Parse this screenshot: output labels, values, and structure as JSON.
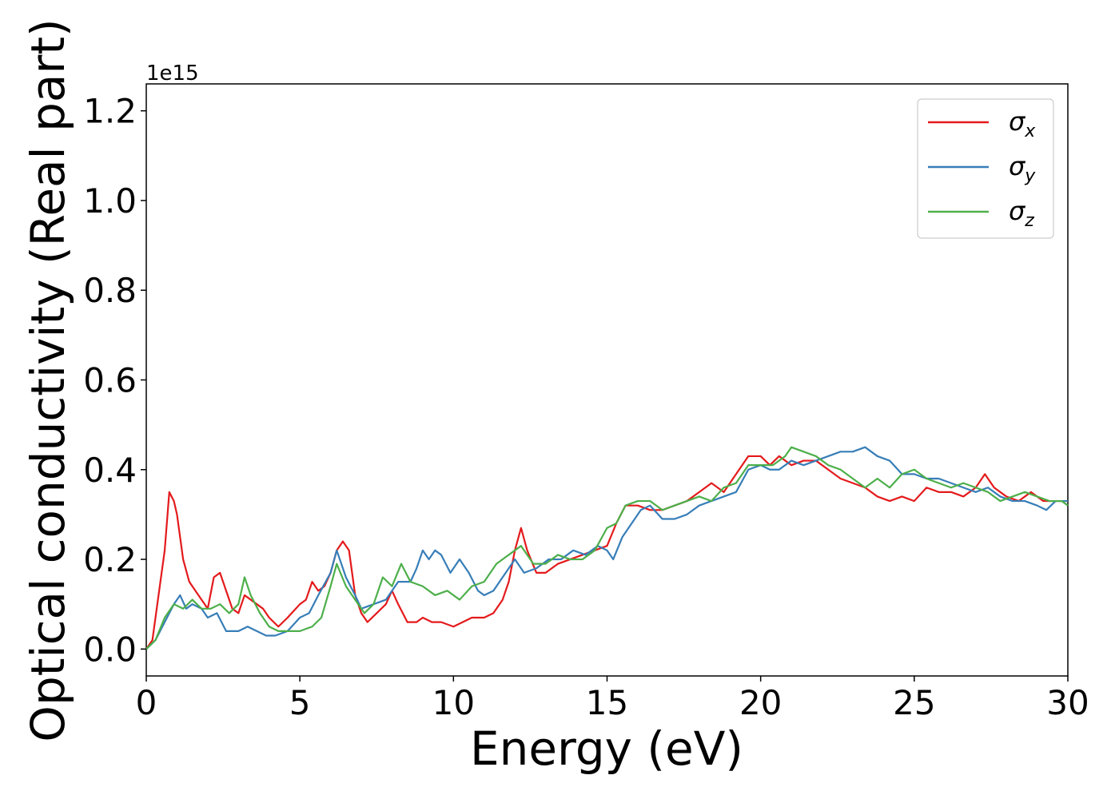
{
  "chart_data": {
    "type": "line",
    "xlabel": "Energy (eV)",
    "ylabel": "Optical conductivity (Real part)",
    "y_offset_text": "1e15",
    "xlim": [
      0,
      30
    ],
    "ylim": [
      -0.06,
      1.26
    ],
    "x_ticks": [
      0,
      5,
      10,
      15,
      20,
      25,
      30
    ],
    "x_tick_labels": [
      "0",
      "5",
      "10",
      "15",
      "20",
      "25",
      "30"
    ],
    "y_ticks": [
      0.0,
      0.2,
      0.4,
      0.6,
      0.8,
      1.0,
      1.2
    ],
    "y_tick_labels": [
      "0.0",
      "0.2",
      "0.4",
      "0.6",
      "0.8",
      "1.0",
      "1.2"
    ],
    "grid": false,
    "legend_position": "top-right",
    "series": [
      {
        "name": "σx",
        "legend_base": "σ",
        "legend_sub": "x",
        "color": "#e41a1c",
        "points": [
          [
            0,
            0
          ],
          [
            0.2,
            0.02
          ],
          [
            0.4,
            0.12
          ],
          [
            0.6,
            0.22
          ],
          [
            0.75,
            0.35
          ],
          [
            0.9,
            0.33
          ],
          [
            1.0,
            0.3
          ],
          [
            1.2,
            0.2
          ],
          [
            1.4,
            0.15
          ],
          [
            1.6,
            0.13
          ],
          [
            1.8,
            0.11
          ],
          [
            2.0,
            0.09
          ],
          [
            2.2,
            0.16
          ],
          [
            2.4,
            0.17
          ],
          [
            2.6,
            0.13
          ],
          [
            2.8,
            0.09
          ],
          [
            3.0,
            0.08
          ],
          [
            3.2,
            0.12
          ],
          [
            3.4,
            0.11
          ],
          [
            3.6,
            0.1
          ],
          [
            3.8,
            0.09
          ],
          [
            4.0,
            0.07
          ],
          [
            4.3,
            0.05
          ],
          [
            4.6,
            0.07
          ],
          [
            5.0,
            0.1
          ],
          [
            5.2,
            0.11
          ],
          [
            5.4,
            0.15
          ],
          [
            5.6,
            0.13
          ],
          [
            5.8,
            0.14
          ],
          [
            6.0,
            0.17
          ],
          [
            6.2,
            0.22
          ],
          [
            6.4,
            0.24
          ],
          [
            6.6,
            0.22
          ],
          [
            6.8,
            0.12
          ],
          [
            7.0,
            0.08
          ],
          [
            7.2,
            0.06
          ],
          [
            7.5,
            0.08
          ],
          [
            7.8,
            0.1
          ],
          [
            8.0,
            0.13
          ],
          [
            8.2,
            0.1
          ],
          [
            8.5,
            0.06
          ],
          [
            8.8,
            0.06
          ],
          [
            9.0,
            0.07
          ],
          [
            9.3,
            0.06
          ],
          [
            9.6,
            0.06
          ],
          [
            10.0,
            0.05
          ],
          [
            10.3,
            0.06
          ],
          [
            10.6,
            0.07
          ],
          [
            11.0,
            0.07
          ],
          [
            11.3,
            0.08
          ],
          [
            11.6,
            0.11
          ],
          [
            11.8,
            0.15
          ],
          [
            12.0,
            0.22
          ],
          [
            12.2,
            0.27
          ],
          [
            12.4,
            0.22
          ],
          [
            12.7,
            0.17
          ],
          [
            13.0,
            0.17
          ],
          [
            13.4,
            0.19
          ],
          [
            13.8,
            0.2
          ],
          [
            14.2,
            0.21
          ],
          [
            14.6,
            0.22
          ],
          [
            15.0,
            0.23
          ],
          [
            15.3,
            0.28
          ],
          [
            15.6,
            0.32
          ],
          [
            16.0,
            0.32
          ],
          [
            16.4,
            0.31
          ],
          [
            16.8,
            0.31
          ],
          [
            17.2,
            0.32
          ],
          [
            17.6,
            0.33
          ],
          [
            18.0,
            0.35
          ],
          [
            18.4,
            0.37
          ],
          [
            18.8,
            0.35
          ],
          [
            19.2,
            0.39
          ],
          [
            19.6,
            0.43
          ],
          [
            20.0,
            0.43
          ],
          [
            20.3,
            0.41
          ],
          [
            20.6,
            0.43
          ],
          [
            21.0,
            0.41
          ],
          [
            21.4,
            0.42
          ],
          [
            21.8,
            0.42
          ],
          [
            22.2,
            0.4
          ],
          [
            22.6,
            0.38
          ],
          [
            23.0,
            0.37
          ],
          [
            23.4,
            0.36
          ],
          [
            23.8,
            0.34
          ],
          [
            24.2,
            0.33
          ],
          [
            24.6,
            0.34
          ],
          [
            25.0,
            0.33
          ],
          [
            25.4,
            0.36
          ],
          [
            25.8,
            0.35
          ],
          [
            26.2,
            0.35
          ],
          [
            26.6,
            0.34
          ],
          [
            27.0,
            0.36
          ],
          [
            27.3,
            0.39
          ],
          [
            27.6,
            0.36
          ],
          [
            28.0,
            0.34
          ],
          [
            28.4,
            0.33
          ],
          [
            28.8,
            0.35
          ],
          [
            29.2,
            0.33
          ],
          [
            29.6,
            0.33
          ],
          [
            30.0,
            0.33
          ]
        ]
      },
      {
        "name": "σy",
        "legend_base": "σ",
        "legend_sub": "y",
        "color": "#377eb8",
        "points": [
          [
            0,
            0
          ],
          [
            0.3,
            0.02
          ],
          [
            0.6,
            0.06
          ],
          [
            0.9,
            0.1
          ],
          [
            1.1,
            0.12
          ],
          [
            1.3,
            0.09
          ],
          [
            1.5,
            0.1
          ],
          [
            1.8,
            0.09
          ],
          [
            2.0,
            0.07
          ],
          [
            2.3,
            0.08
          ],
          [
            2.6,
            0.04
          ],
          [
            3.0,
            0.04
          ],
          [
            3.3,
            0.05
          ],
          [
            3.6,
            0.04
          ],
          [
            3.9,
            0.03
          ],
          [
            4.2,
            0.03
          ],
          [
            4.6,
            0.04
          ],
          [
            5.0,
            0.07
          ],
          [
            5.3,
            0.08
          ],
          [
            5.6,
            0.12
          ],
          [
            6.0,
            0.17
          ],
          [
            6.2,
            0.22
          ],
          [
            6.5,
            0.16
          ],
          [
            6.8,
            0.12
          ],
          [
            7.0,
            0.09
          ],
          [
            7.4,
            0.1
          ],
          [
            7.8,
            0.11
          ],
          [
            8.2,
            0.15
          ],
          [
            8.6,
            0.15
          ],
          [
            8.8,
            0.18
          ],
          [
            9.0,
            0.22
          ],
          [
            9.2,
            0.2
          ],
          [
            9.4,
            0.22
          ],
          [
            9.6,
            0.21
          ],
          [
            9.9,
            0.17
          ],
          [
            10.2,
            0.2
          ],
          [
            10.5,
            0.17
          ],
          [
            10.8,
            0.13
          ],
          [
            11.0,
            0.12
          ],
          [
            11.3,
            0.13
          ],
          [
            11.6,
            0.16
          ],
          [
            12.0,
            0.2
          ],
          [
            12.3,
            0.17
          ],
          [
            12.7,
            0.18
          ],
          [
            13.1,
            0.2
          ],
          [
            13.5,
            0.2
          ],
          [
            13.9,
            0.22
          ],
          [
            14.3,
            0.21
          ],
          [
            14.7,
            0.23
          ],
          [
            15.0,
            0.22
          ],
          [
            15.2,
            0.2
          ],
          [
            15.5,
            0.25
          ],
          [
            15.8,
            0.28
          ],
          [
            16.1,
            0.31
          ],
          [
            16.4,
            0.32
          ],
          [
            16.8,
            0.29
          ],
          [
            17.2,
            0.29
          ],
          [
            17.6,
            0.3
          ],
          [
            18.0,
            0.32
          ],
          [
            18.4,
            0.33
          ],
          [
            18.8,
            0.34
          ],
          [
            19.2,
            0.35
          ],
          [
            19.6,
            0.4
          ],
          [
            20.0,
            0.41
          ],
          [
            20.3,
            0.4
          ],
          [
            20.6,
            0.4
          ],
          [
            21.0,
            0.42
          ],
          [
            21.4,
            0.41
          ],
          [
            21.8,
            0.42
          ],
          [
            22.2,
            0.43
          ],
          [
            22.6,
            0.44
          ],
          [
            23.0,
            0.44
          ],
          [
            23.4,
            0.45
          ],
          [
            23.8,
            0.43
          ],
          [
            24.2,
            0.42
          ],
          [
            24.6,
            0.39
          ],
          [
            25.0,
            0.39
          ],
          [
            25.4,
            0.38
          ],
          [
            25.8,
            0.38
          ],
          [
            26.2,
            0.37
          ],
          [
            26.6,
            0.36
          ],
          [
            27.0,
            0.35
          ],
          [
            27.4,
            0.36
          ],
          [
            27.8,
            0.34
          ],
          [
            28.2,
            0.33
          ],
          [
            28.6,
            0.33
          ],
          [
            29.0,
            0.32
          ],
          [
            29.3,
            0.31
          ],
          [
            29.6,
            0.33
          ],
          [
            30.0,
            0.33
          ]
        ]
      },
      {
        "name": "σz",
        "legend_base": "σ",
        "legend_sub": "z",
        "color": "#4daf4a",
        "points": [
          [
            0,
            0
          ],
          [
            0.3,
            0.02
          ],
          [
            0.6,
            0.07
          ],
          [
            0.9,
            0.1
          ],
          [
            1.2,
            0.09
          ],
          [
            1.5,
            0.11
          ],
          [
            1.8,
            0.09
          ],
          [
            2.1,
            0.09
          ],
          [
            2.4,
            0.1
          ],
          [
            2.7,
            0.08
          ],
          [
            3.0,
            0.1
          ],
          [
            3.2,
            0.16
          ],
          [
            3.4,
            0.12
          ],
          [
            3.7,
            0.08
          ],
          [
            4.0,
            0.05
          ],
          [
            4.3,
            0.04
          ],
          [
            4.7,
            0.04
          ],
          [
            5.0,
            0.04
          ],
          [
            5.4,
            0.05
          ],
          [
            5.7,
            0.07
          ],
          [
            6.0,
            0.14
          ],
          [
            6.2,
            0.19
          ],
          [
            6.5,
            0.14
          ],
          [
            6.8,
            0.11
          ],
          [
            7.1,
            0.08
          ],
          [
            7.4,
            0.1
          ],
          [
            7.7,
            0.16
          ],
          [
            8.0,
            0.14
          ],
          [
            8.3,
            0.19
          ],
          [
            8.6,
            0.15
          ],
          [
            9.0,
            0.14
          ],
          [
            9.4,
            0.12
          ],
          [
            9.8,
            0.13
          ],
          [
            10.2,
            0.11
          ],
          [
            10.6,
            0.14
          ],
          [
            11.0,
            0.15
          ],
          [
            11.4,
            0.19
          ],
          [
            11.8,
            0.21
          ],
          [
            12.2,
            0.23
          ],
          [
            12.6,
            0.19
          ],
          [
            13.0,
            0.19
          ],
          [
            13.4,
            0.21
          ],
          [
            13.8,
            0.2
          ],
          [
            14.2,
            0.2
          ],
          [
            14.6,
            0.22
          ],
          [
            15.0,
            0.27
          ],
          [
            15.3,
            0.28
          ],
          [
            15.6,
            0.32
          ],
          [
            16.0,
            0.33
          ],
          [
            16.4,
            0.33
          ],
          [
            16.8,
            0.31
          ],
          [
            17.2,
            0.32
          ],
          [
            17.6,
            0.33
          ],
          [
            18.0,
            0.34
          ],
          [
            18.4,
            0.33
          ],
          [
            18.8,
            0.36
          ],
          [
            19.2,
            0.37
          ],
          [
            19.6,
            0.41
          ],
          [
            20.0,
            0.41
          ],
          [
            20.4,
            0.41
          ],
          [
            20.8,
            0.43
          ],
          [
            21.0,
            0.45
          ],
          [
            21.4,
            0.44
          ],
          [
            21.8,
            0.43
          ],
          [
            22.2,
            0.41
          ],
          [
            22.6,
            0.4
          ],
          [
            23.0,
            0.38
          ],
          [
            23.4,
            0.36
          ],
          [
            23.8,
            0.38
          ],
          [
            24.2,
            0.36
          ],
          [
            24.6,
            0.39
          ],
          [
            25.0,
            0.4
          ],
          [
            25.4,
            0.38
          ],
          [
            25.8,
            0.37
          ],
          [
            26.2,
            0.36
          ],
          [
            26.6,
            0.37
          ],
          [
            27.0,
            0.36
          ],
          [
            27.4,
            0.35
          ],
          [
            27.8,
            0.33
          ],
          [
            28.2,
            0.34
          ],
          [
            28.6,
            0.35
          ],
          [
            29.0,
            0.34
          ],
          [
            29.4,
            0.33
          ],
          [
            29.8,
            0.33
          ],
          [
            30.0,
            0.32
          ]
        ]
      }
    ]
  }
}
